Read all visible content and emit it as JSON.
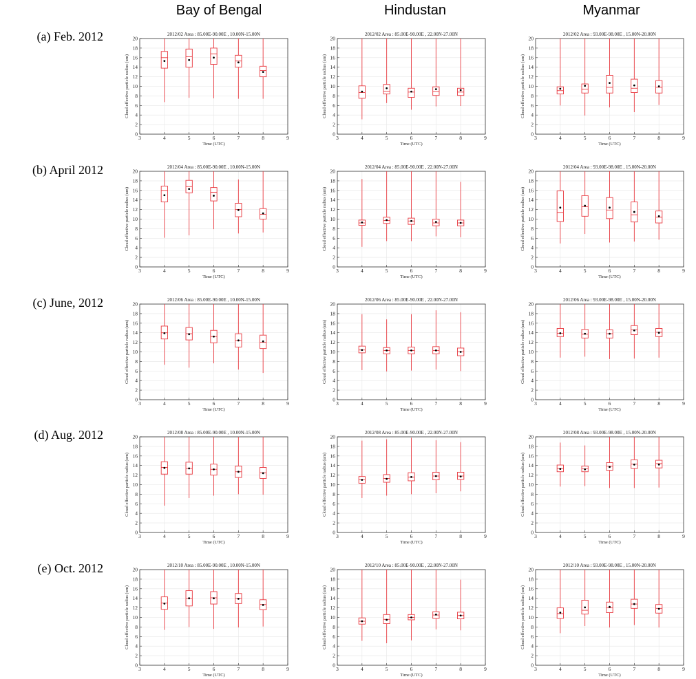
{
  "headers": [
    "Bay of Bengal",
    "Hindustan",
    "Myanmar"
  ],
  "rows": [
    "(a) Feb. 2012",
    "(b) April 2012",
    "(c) June, 2012",
    "(d) Aug. 2012",
    "(e) Oct. 2012"
  ],
  "chart_data": [
    {
      "type": "box",
      "title": "2012/02    Area : 85.00E-90.00E , 10.00N-15.00N",
      "xlabel": "Time (UTC)",
      "ylabel": "Cloud effective particle radius (um)",
      "xlim": [
        3,
        9
      ],
      "ylim": [
        0,
        20
      ],
      "boxes": [
        {
          "x": 4,
          "min": 6.7,
          "q1": 13.8,
          "median": 16.0,
          "q3": 17.3,
          "max": 20,
          "mean": 15.3
        },
        {
          "x": 5,
          "min": 7.6,
          "q1": 14.0,
          "median": 16.2,
          "q3": 17.8,
          "max": 20,
          "mean": 15.5
        },
        {
          "x": 6,
          "min": 7.5,
          "q1": 14.6,
          "median": 16.8,
          "q3": 18.0,
          "max": 20,
          "mean": 16.0
        },
        {
          "x": 7,
          "min": 7.4,
          "q1": 14.0,
          "median": 15.3,
          "q3": 16.5,
          "max": 20,
          "mean": 15.0
        },
        {
          "x": 8,
          "min": 7.4,
          "q1": 12.0,
          "median": 13.3,
          "q3": 14.2,
          "max": 20,
          "mean": 13.0
        }
      ]
    },
    {
      "type": "box",
      "title": "2012/02    Area : 85.00E-90.00E , 22.00N-27.00N",
      "xlabel": "Time (UTC)",
      "ylabel": "Cloud effective particle radius (um)",
      "xlim": [
        3,
        9
      ],
      "ylim": [
        0,
        20
      ],
      "boxes": [
        {
          "x": 4,
          "min": 3.1,
          "q1": 7.5,
          "median": 8.7,
          "q3": 10.1,
          "max": 20,
          "mean": 8.9
        },
        {
          "x": 5,
          "min": 6.5,
          "q1": 8.4,
          "median": 9.0,
          "q3": 10.4,
          "max": 20,
          "mean": 9.6
        },
        {
          "x": 6,
          "min": 5.1,
          "q1": 7.7,
          "median": 8.8,
          "q3": 9.6,
          "max": 20,
          "mean": 8.9
        },
        {
          "x": 7,
          "min": 5.8,
          "q1": 8.1,
          "median": 8.9,
          "q3": 9.9,
          "max": 20,
          "mean": 9.4
        },
        {
          "x": 8,
          "min": 5.9,
          "q1": 8.1,
          "median": 8.8,
          "q3": 9.6,
          "max": 20,
          "mean": 9.2
        }
      ]
    },
    {
      "type": "box",
      "title": "2012/02    Area : 93.00E-98.00E , 15.00N-20.00N",
      "xlabel": "Time (UTC)",
      "ylabel": "Cloud effective particle radius (um)",
      "xlim": [
        3,
        9
      ],
      "ylim": [
        0,
        20
      ],
      "boxes": [
        {
          "x": 4,
          "min": 6.0,
          "q1": 8.4,
          "median": 9.1,
          "q3": 9.9,
          "max": 20,
          "mean": 9.5
        },
        {
          "x": 5,
          "min": 3.9,
          "q1": 8.6,
          "median": 9.4,
          "q3": 10.5,
          "max": 20,
          "mean": 10.1
        },
        {
          "x": 6,
          "min": 5.6,
          "q1": 8.6,
          "median": 9.8,
          "q3": 12.3,
          "max": 20,
          "mean": 10.7
        },
        {
          "x": 7,
          "min": 4.6,
          "q1": 8.7,
          "median": 9.6,
          "q3": 11.5,
          "max": 20,
          "mean": 10.2
        },
        {
          "x": 8,
          "min": 6.1,
          "q1": 8.6,
          "median": 9.8,
          "q3": 11.2,
          "max": 20,
          "mean": 10.0
        }
      ]
    },
    {
      "type": "box",
      "title": "2012/04    Area : 85.00E-90.00E , 10.00N-15.00N",
      "xlabel": "Time (UTC)",
      "ylabel": "Cloud effective particle radius (um)",
      "xlim": [
        3,
        9
      ],
      "ylim": [
        0,
        20
      ],
      "boxes": [
        {
          "x": 4,
          "min": 6.1,
          "q1": 13.6,
          "median": 16.0,
          "q3": 16.9,
          "max": 20,
          "mean": 15.0
        },
        {
          "x": 5,
          "min": 6.6,
          "q1": 15.5,
          "median": 16.8,
          "q3": 18.1,
          "max": 20,
          "mean": 16.3
        },
        {
          "x": 6,
          "min": 7.9,
          "q1": 13.8,
          "median": 15.6,
          "q3": 16.6,
          "max": 20,
          "mean": 14.9
        },
        {
          "x": 7,
          "min": 7.0,
          "q1": 10.5,
          "median": 12.0,
          "q3": 13.3,
          "max": 18.3,
          "mean": 11.9
        },
        {
          "x": 8,
          "min": 7.2,
          "q1": 10.0,
          "median": 11.0,
          "q3": 12.2,
          "max": 20,
          "mean": 11.2
        }
      ]
    },
    {
      "type": "box",
      "title": "2012/04    Area : 85.00E-90.00E , 22.00N-27.00N",
      "xlabel": "Time (UTC)",
      "ylabel": "Cloud effective particle radius (um)",
      "xlim": [
        3,
        9
      ],
      "ylim": [
        0,
        20
      ],
      "boxes": [
        {
          "x": 4,
          "min": 4.2,
          "q1": 8.7,
          "median": 9.2,
          "q3": 9.8,
          "max": 18.4,
          "mean": 9.3
        },
        {
          "x": 5,
          "min": 5.4,
          "q1": 9.1,
          "median": 9.7,
          "q3": 10.4,
          "max": 20,
          "mean": 9.8
        },
        {
          "x": 6,
          "min": 5.4,
          "q1": 8.9,
          "median": 9.6,
          "q3": 10.2,
          "max": 20,
          "mean": 9.6
        },
        {
          "x": 7,
          "min": 6.4,
          "q1": 8.6,
          "median": 9.2,
          "q3": 10.0,
          "max": 20,
          "mean": 9.4
        },
        {
          "x": 8,
          "min": 6.2,
          "q1": 8.6,
          "median": 9.2,
          "q3": 9.8,
          "max": 17.8,
          "mean": 9.2
        }
      ]
    },
    {
      "type": "box",
      "title": "2012/04    Area : 93.00E-98.00E , 15.00N-20.00N",
      "xlabel": "Time (UTC)",
      "ylabel": "Cloud effective particle radius (um)",
      "xlim": [
        3,
        9
      ],
      "ylim": [
        0,
        20
      ],
      "boxes": [
        {
          "x": 4,
          "min": 4.9,
          "q1": 9.5,
          "median": 11.4,
          "q3": 15.9,
          "max": 20,
          "mean": 12.4
        },
        {
          "x": 5,
          "min": 6.9,
          "q1": 10.6,
          "median": 12.6,
          "q3": 14.9,
          "max": 20,
          "mean": 12.8
        },
        {
          "x": 6,
          "min": 5.1,
          "q1": 10.1,
          "median": 11.9,
          "q3": 14.5,
          "max": 20,
          "mean": 12.4
        },
        {
          "x": 7,
          "min": 5.3,
          "q1": 9.4,
          "median": 10.9,
          "q3": 13.6,
          "max": 20,
          "mean": 11.5
        },
        {
          "x": 8,
          "min": 5.7,
          "q1": 9.2,
          "median": 10.4,
          "q3": 11.7,
          "max": 20,
          "mean": 10.6
        }
      ]
    },
    {
      "type": "box",
      "title": "2012/06    Area : 85.00E-90.00E , 10.00N-15.00N",
      "xlabel": "Time (UTC)",
      "ylabel": "Cloud effective particle radius (um)",
      "xlim": [
        3,
        9
      ],
      "ylim": [
        0,
        20
      ],
      "boxes": [
        {
          "x": 4,
          "min": 7.3,
          "q1": 12.7,
          "median": 14.0,
          "q3": 15.4,
          "max": 20,
          "mean": 13.9
        },
        {
          "x": 5,
          "min": 6.7,
          "q1": 12.5,
          "median": 13.8,
          "q3": 15.1,
          "max": 20,
          "mean": 13.7
        },
        {
          "x": 6,
          "min": 7.6,
          "q1": 11.9,
          "median": 13.2,
          "q3": 14.5,
          "max": 20,
          "mean": 13.2
        },
        {
          "x": 7,
          "min": 6.3,
          "q1": 11.0,
          "median": 12.4,
          "q3": 13.8,
          "max": 20,
          "mean": 12.4
        },
        {
          "x": 8,
          "min": 5.6,
          "q1": 10.7,
          "median": 12.0,
          "q3": 13.5,
          "max": 20,
          "mean": 12.2
        }
      ]
    },
    {
      "type": "box",
      "title": "2012/06    Area : 85.00E-90.00E , 22.00N-27.00N",
      "xlabel": "Time (UTC)",
      "ylabel": "Cloud effective particle radius (um)",
      "xlim": [
        3,
        9
      ],
      "ylim": [
        0,
        20
      ],
      "boxes": [
        {
          "x": 4,
          "min": 6.2,
          "q1": 9.8,
          "median": 10.4,
          "q3": 11.2,
          "max": 17.9,
          "mean": 10.4
        },
        {
          "x": 5,
          "min": 5.9,
          "q1": 9.6,
          "median": 10.3,
          "q3": 10.9,
          "max": 16.8,
          "mean": 10.3
        },
        {
          "x": 6,
          "min": 6.1,
          "q1": 9.6,
          "median": 10.3,
          "q3": 11.0,
          "max": 17.9,
          "mean": 10.3
        },
        {
          "x": 7,
          "min": 6.3,
          "q1": 9.6,
          "median": 10.3,
          "q3": 11.1,
          "max": 18.7,
          "mean": 10.3
        },
        {
          "x": 8,
          "min": 6.0,
          "q1": 9.2,
          "median": 10.0,
          "q3": 10.8,
          "max": 18.3,
          "mean": 10.0
        }
      ]
    },
    {
      "type": "box",
      "title": "2012/06    Area : 93.00E-98.00E , 15.00N-20.00N",
      "xlabel": "Time (UTC)",
      "ylabel": "Cloud effective particle radius (um)",
      "xlim": [
        3,
        9
      ],
      "ylim": [
        0,
        20
      ],
      "boxes": [
        {
          "x": 4,
          "min": 8.8,
          "q1": 13.2,
          "median": 13.9,
          "q3": 14.9,
          "max": 20,
          "mean": 13.9
        },
        {
          "x": 5,
          "min": 9.0,
          "q1": 12.9,
          "median": 13.7,
          "q3": 14.7,
          "max": 20,
          "mean": 13.8
        },
        {
          "x": 6,
          "min": 8.5,
          "q1": 12.9,
          "median": 13.8,
          "q3": 14.6,
          "max": 20,
          "mean": 13.8
        },
        {
          "x": 7,
          "min": 8.6,
          "q1": 13.6,
          "median": 14.6,
          "q3": 15.5,
          "max": 20,
          "mean": 14.5
        },
        {
          "x": 8,
          "min": 8.8,
          "q1": 13.2,
          "median": 14.1,
          "q3": 14.9,
          "max": 20,
          "mean": 14.0
        }
      ]
    },
    {
      "type": "box",
      "title": "2012/08    Area : 85.00E-90.00E , 10.00N-15.00N",
      "xlabel": "Time (UTC)",
      "ylabel": "Cloud effective particle radius (um)",
      "xlim": [
        3,
        9
      ],
      "ylim": [
        0,
        20
      ],
      "boxes": [
        {
          "x": 4,
          "min": 5.6,
          "q1": 12.2,
          "median": 13.6,
          "q3": 14.8,
          "max": 20,
          "mean": 13.5
        },
        {
          "x": 5,
          "min": 7.2,
          "q1": 12.2,
          "median": 13.4,
          "q3": 14.7,
          "max": 20,
          "mean": 13.4
        },
        {
          "x": 6,
          "min": 7.7,
          "q1": 12.0,
          "median": 13.2,
          "q3": 14.3,
          "max": 20,
          "mean": 13.2
        },
        {
          "x": 7,
          "min": 8.0,
          "q1": 11.5,
          "median": 12.7,
          "q3": 13.9,
          "max": 20,
          "mean": 12.7
        },
        {
          "x": 8,
          "min": 7.9,
          "q1": 11.3,
          "median": 12.5,
          "q3": 13.6,
          "max": 20,
          "mean": 12.4
        }
      ]
    },
    {
      "type": "box",
      "title": "2012/08    Area : 85.00E-90.00E , 22.00N-27.00N",
      "xlabel": "Time (UTC)",
      "ylabel": "Cloud effective particle radius (um)",
      "xlim": [
        3,
        9
      ],
      "ylim": [
        0,
        20
      ],
      "boxes": [
        {
          "x": 4,
          "min": 7.2,
          "q1": 10.3,
          "median": 11.0,
          "q3": 11.7,
          "max": 19.2,
          "mean": 11.0
        },
        {
          "x": 5,
          "min": 7.7,
          "q1": 10.5,
          "median": 11.3,
          "q3": 12.1,
          "max": 19.5,
          "mean": 11.2
        },
        {
          "x": 6,
          "min": 8.0,
          "q1": 10.8,
          "median": 11.6,
          "q3": 12.5,
          "max": 19.8,
          "mean": 11.6
        },
        {
          "x": 7,
          "min": 8.2,
          "q1": 11.0,
          "median": 11.8,
          "q3": 12.6,
          "max": 19.3,
          "mean": 11.8
        },
        {
          "x": 8,
          "min": 8.6,
          "q1": 11.1,
          "median": 11.8,
          "q3": 12.6,
          "max": 18.9,
          "mean": 11.7
        }
      ]
    },
    {
      "type": "box",
      "title": "2012/08    Area : 93.00E-98.00E , 15.00N-20.00N",
      "xlabel": "Time (UTC)",
      "ylabel": "Cloud effective particle radius (um)",
      "xlim": [
        3,
        9
      ],
      "ylim": [
        0,
        20
      ],
      "boxes": [
        {
          "x": 4,
          "min": 9.6,
          "q1": 12.7,
          "median": 13.4,
          "q3": 14.1,
          "max": 18.8,
          "mean": 13.3
        },
        {
          "x": 5,
          "min": 9.7,
          "q1": 12.7,
          "median": 13.3,
          "q3": 13.9,
          "max": 18.2,
          "mean": 13.2
        },
        {
          "x": 6,
          "min": 9.3,
          "q1": 13.0,
          "median": 13.9,
          "q3": 14.6,
          "max": 20,
          "mean": 13.7
        },
        {
          "x": 7,
          "min": 9.3,
          "q1": 13.4,
          "median": 14.3,
          "q3": 15.2,
          "max": 20,
          "mean": 14.2
        },
        {
          "x": 8,
          "min": 9.4,
          "q1": 13.5,
          "median": 14.4,
          "q3": 15.1,
          "max": 20,
          "mean": 14.2
        }
      ]
    },
    {
      "type": "box",
      "title": "2012/10    Area : 85.00E-90.00E , 10.00N-15.00N",
      "xlabel": "Time (UTC)",
      "ylabel": "Cloud effective particle radius (um)",
      "xlim": [
        3,
        9
      ],
      "ylim": [
        0,
        20
      ],
      "boxes": [
        {
          "x": 4,
          "min": 7.4,
          "q1": 11.7,
          "median": 13.0,
          "q3": 14.3,
          "max": 20,
          "mean": 12.9
        },
        {
          "x": 5,
          "min": 8.0,
          "q1": 12.4,
          "median": 14.0,
          "q3": 15.6,
          "max": 20,
          "mean": 14.0
        },
        {
          "x": 6,
          "min": 7.6,
          "q1": 12.8,
          "median": 14.1,
          "q3": 15.4,
          "max": 20,
          "mean": 14.0
        },
        {
          "x": 7,
          "min": 7.9,
          "q1": 12.9,
          "median": 14.0,
          "q3": 15.0,
          "max": 20,
          "mean": 13.9
        },
        {
          "x": 8,
          "min": 8.1,
          "q1": 11.6,
          "median": 12.7,
          "q3": 13.7,
          "max": 20,
          "mean": 12.6
        }
      ]
    },
    {
      "type": "box",
      "title": "2012/10    Area : 85.00E-90.00E , 22.00N-27.00N",
      "xlabel": "Time (UTC)",
      "ylabel": "Cloud effective particle radius (um)",
      "xlim": [
        3,
        9
      ],
      "ylim": [
        0,
        20
      ],
      "boxes": [
        {
          "x": 4,
          "min": 5.1,
          "q1": 8.6,
          "median": 9.2,
          "q3": 9.9,
          "max": 20,
          "mean": 9.2
        },
        {
          "x": 5,
          "min": 4.6,
          "q1": 8.7,
          "median": 9.6,
          "q3": 10.6,
          "max": 20,
          "mean": 9.5
        },
        {
          "x": 6,
          "min": 5.2,
          "q1": 9.5,
          "median": 10.0,
          "q3": 10.6,
          "max": 20,
          "mean": 10.0
        },
        {
          "x": 7,
          "min": 7.5,
          "q1": 9.8,
          "median": 10.5,
          "q3": 11.2,
          "max": 20,
          "mean": 10.6
        },
        {
          "x": 8,
          "min": 7.3,
          "q1": 9.7,
          "median": 10.4,
          "q3": 11.1,
          "max": 17.9,
          "mean": 10.4
        }
      ]
    },
    {
      "type": "box",
      "title": "2012/10    Area : 93.00E-98.00E , 15.00N-20.00N",
      "xlabel": "Time (UTC)",
      "ylabel": "Cloud effective particle radius (um)",
      "xlim": [
        3,
        9
      ],
      "ylim": [
        0,
        20
      ],
      "boxes": [
        {
          "x": 4,
          "min": 6.7,
          "q1": 9.8,
          "median": 10.8,
          "q3": 12.0,
          "max": 20,
          "mean": 11.0
        },
        {
          "x": 5,
          "min": 8.2,
          "q1": 10.7,
          "median": 11.5,
          "q3": 13.6,
          "max": 20,
          "mean": 12.1
        },
        {
          "x": 6,
          "min": 7.9,
          "q1": 11.0,
          "median": 12.0,
          "q3": 13.2,
          "max": 20,
          "mean": 12.2
        },
        {
          "x": 7,
          "min": 8.4,
          "q1": 11.9,
          "median": 12.8,
          "q3": 13.8,
          "max": 20,
          "mean": 12.8
        },
        {
          "x": 8,
          "min": 7.9,
          "q1": 10.9,
          "median": 11.9,
          "q3": 12.7,
          "max": 20,
          "mean": 11.8
        }
      ]
    }
  ],
  "colors": {
    "box": "#e8383f",
    "mean_dot": "#000000",
    "axes": "#333333",
    "grid": "#e6e6e6"
  }
}
